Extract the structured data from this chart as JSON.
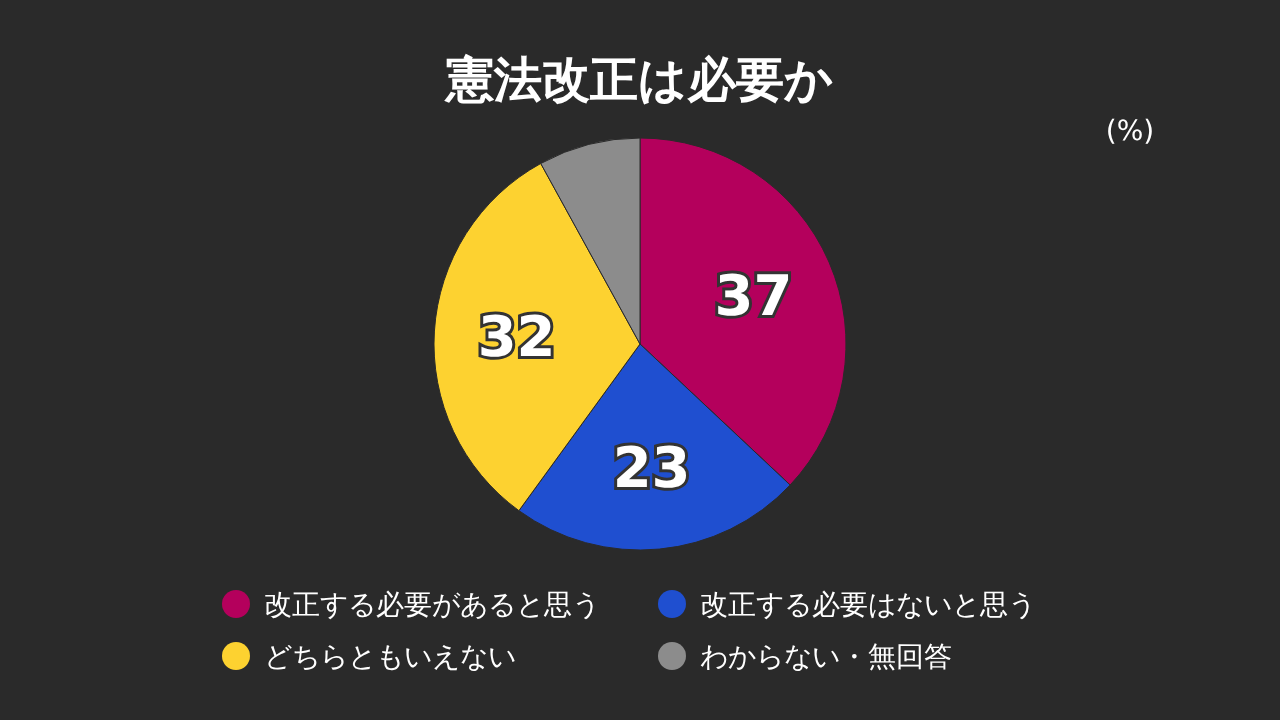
{
  "chart_data": {
    "type": "pie",
    "title": "憲法改正は必要か",
    "annotations": [
      "(%)"
    ],
    "categories": [
      "改正する必要があると思う",
      "改正する必要はないと思う",
      "どちらともいえない",
      "わからない・無回答"
    ],
    "values": [
      37,
      23,
      32,
      8
    ],
    "colors": [
      "#b4005c",
      "#1f4fd0",
      "#fdd230",
      "#8c8c8c"
    ],
    "value_labels": [
      "37",
      "23",
      "32",
      null
    ],
    "legend": "bottom"
  }
}
